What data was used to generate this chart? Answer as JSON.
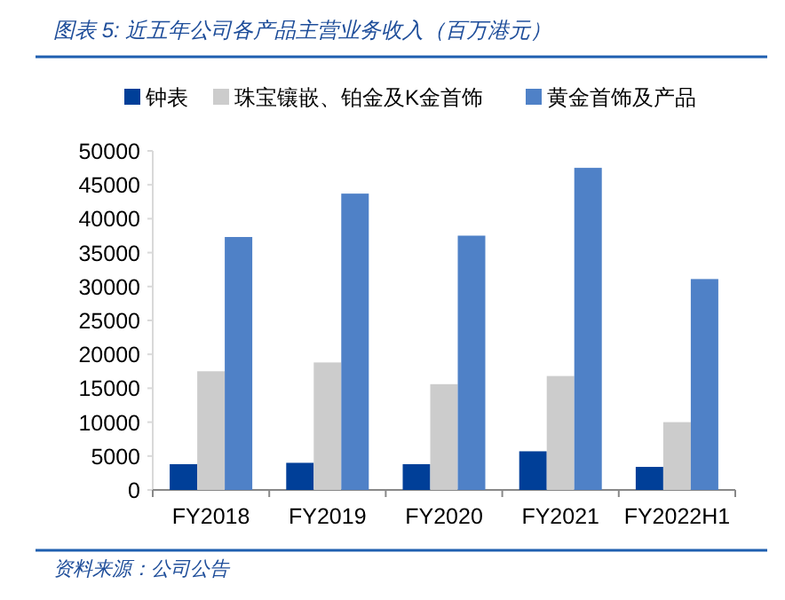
{
  "chart_data": {
    "type": "bar",
    "title": "图表 5: 近五年公司各产品主营业务收入（百万港元）",
    "annotations": [
      "资料来源：公司公告"
    ],
    "categories": [
      "FY2018",
      "FY2019",
      "FY2020",
      "FY2021",
      "FY2022H1"
    ],
    "series": [
      {
        "name": "钟表",
        "color": "#003f98",
        "values": [
          3800,
          4000,
          3800,
          5700,
          3400
        ]
      },
      {
        "name": "珠宝镶嵌、铂金及K金首饰",
        "color": "#cccccc",
        "values": [
          17500,
          18800,
          15600,
          16800,
          10000
        ]
      },
      {
        "name": "黄金首饰及产品",
        "color": "#4f81c7",
        "values": [
          37300,
          43700,
          37500,
          47500,
          31100
        ]
      }
    ],
    "ylim": [
      0,
      50000
    ],
    "yticks": [
      0,
      5000,
      10000,
      15000,
      20000,
      25000,
      30000,
      35000,
      40000,
      45000,
      50000
    ],
    "legend": "top",
    "grid": false
  }
}
